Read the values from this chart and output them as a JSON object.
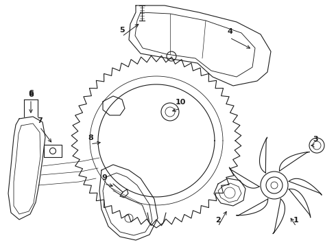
{
  "bg_color": "#ffffff",
  "line_color": "#1a1a1a",
  "label_color": "#1a1a1a",
  "figsize": [
    4.9,
    3.6
  ],
  "dpi": 100,
  "labels_info": [
    [
      "1",
      432,
      330,
      422,
      315
    ],
    [
      "2",
      318,
      330,
      332,
      305
    ],
    [
      "3",
      460,
      212,
      450,
      212
    ],
    [
      "4",
      335,
      55,
      368,
      72
    ],
    [
      "5",
      178,
      53,
      205,
      33
    ],
    [
      "6",
      45,
      145,
      45,
      168
    ],
    [
      "7",
      58,
      185,
      77,
      210
    ],
    [
      "8",
      132,
      210,
      150,
      207
    ],
    [
      "9",
      152,
      268,
      168,
      272
    ],
    [
      "10",
      263,
      158,
      248,
      163
    ]
  ]
}
